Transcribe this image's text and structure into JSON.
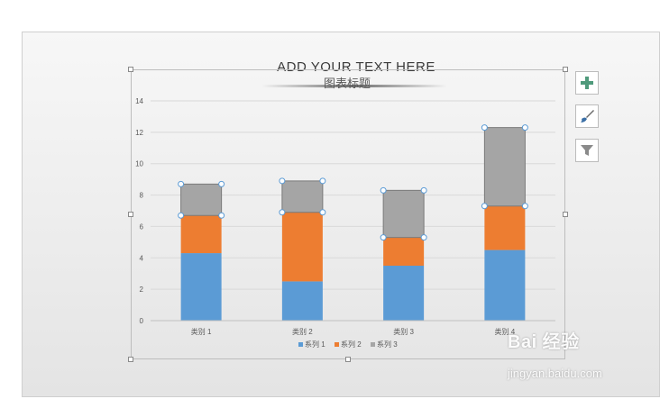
{
  "slide": {
    "title_placeholder": "ADD YOUR TEXT HERE"
  },
  "chart": {
    "title": "图表标题"
  },
  "toolbar": {
    "buttons": [
      {
        "name": "chart-elements-button",
        "icon": "plus-icon",
        "color": "#4f9a7b"
      },
      {
        "name": "chart-styles-button",
        "icon": "paintbrush-icon",
        "color": "#3b6fa6"
      },
      {
        "name": "chart-filters-button",
        "icon": "filter-icon",
        "color": "#8a8a8a"
      }
    ]
  },
  "watermark": {
    "logo_text": "Bai 经验",
    "url": "jingyan.baidu.com"
  },
  "chart_data": {
    "type": "bar",
    "stacked": true,
    "categories": [
      "类别 1",
      "类别 2",
      "类别 3",
      "类别 4"
    ],
    "series": [
      {
        "name": "系列 1",
        "values": [
          4.3,
          2.5,
          3.5,
          4.5
        ],
        "color": "#5b9bd5"
      },
      {
        "name": "系列 2",
        "values": [
          2.4,
          4.4,
          1.8,
          2.8
        ],
        "color": "#ed7d31"
      },
      {
        "name": "系列 3",
        "values": [
          2.0,
          2.0,
          3.0,
          5.0
        ],
        "color": "#a5a5a5"
      }
    ],
    "ylim": [
      0,
      14
    ],
    "yticks": [
      "0",
      "2",
      "4",
      "6",
      "8",
      "10",
      "12",
      "14"
    ],
    "grid": true,
    "legend_position": "bottom",
    "selected_series": "系列 3"
  }
}
